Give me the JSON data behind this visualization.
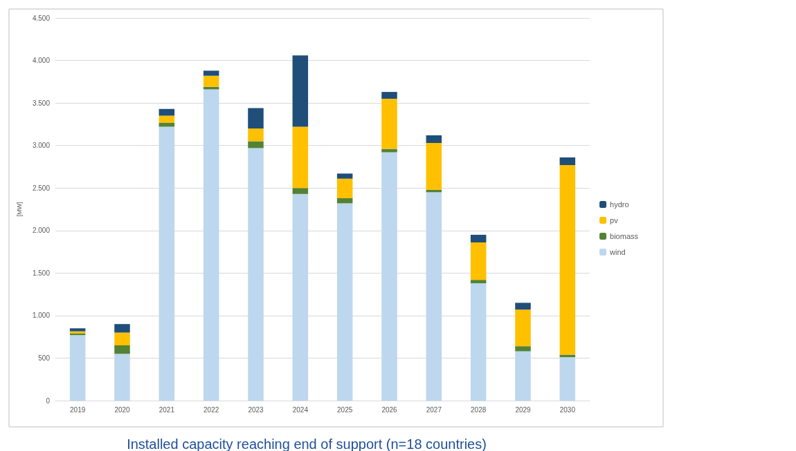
{
  "chart_data": {
    "type": "bar",
    "title": "Installed capacity reaching end of support (n=18 countries)",
    "ylabel": "[MW]",
    "categories": [
      "2019",
      "2020",
      "2021",
      "2022",
      "2023",
      "2024",
      "2025",
      "2026",
      "2027",
      "2028",
      "2029",
      "2030"
    ],
    "stacked": true,
    "series": [
      {
        "name": "wind",
        "color": "#bdd7ee",
        "values": [
          770,
          550,
          3220,
          3660,
          2970,
          2430,
          2320,
          2920,
          2450,
          1380,
          580,
          510
        ]
      },
      {
        "name": "biomass",
        "color": "#548235",
        "values": [
          20,
          100,
          50,
          30,
          80,
          70,
          60,
          40,
          30,
          40,
          60,
          30
        ]
      },
      {
        "name": "pv",
        "color": "#ffc000",
        "values": [
          25,
          150,
          80,
          130,
          150,
          720,
          230,
          590,
          550,
          440,
          430,
          2230
        ]
      },
      {
        "name": "hydro",
        "color": "#1f4e79",
        "values": [
          35,
          100,
          80,
          60,
          240,
          840,
          60,
          80,
          90,
          90,
          80,
          90
        ]
      }
    ],
    "ylim": [
      0,
      4500
    ],
    "yticks": [
      0,
      500,
      {
        "value": 1000,
        "label": "1.000"
      },
      {
        "value": 1500,
        "label": "1.500"
      },
      {
        "value": 2000,
        "label": "2.000"
      },
      {
        "value": 2500,
        "label": "2.500"
      },
      {
        "value": 3000,
        "label": "3.000"
      },
      {
        "value": 3500,
        "label": "3.500"
      },
      {
        "value": 4000,
        "label": "4.000"
      },
      {
        "value": 4500,
        "label": "4.500"
      }
    ],
    "grid": "y",
    "legend": "right"
  }
}
